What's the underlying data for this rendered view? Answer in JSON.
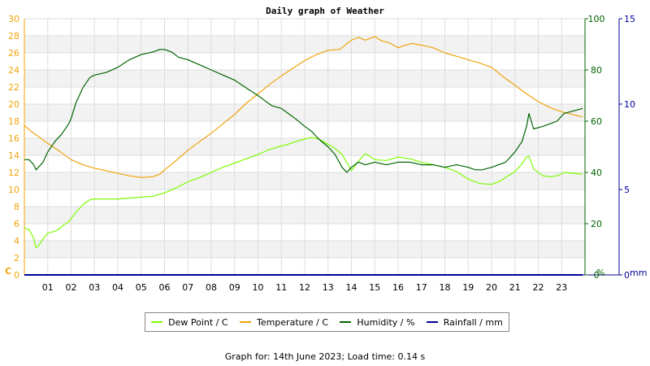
{
  "chart_data": {
    "type": "line",
    "title": "Daily graph of Weather",
    "x_ticks": [
      "01",
      "02",
      "03",
      "04",
      "05",
      "06",
      "07",
      "08",
      "09",
      "10",
      "11",
      "12",
      "13",
      "14",
      "15",
      "16",
      "17",
      "18",
      "19",
      "20",
      "21",
      "22",
      "23"
    ],
    "xlim": [
      0,
      24
    ],
    "y_left": {
      "label": "C",
      "ticks": [
        0,
        2,
        4,
        6,
        8,
        10,
        12,
        14,
        16,
        18,
        20,
        22,
        24,
        26,
        28,
        30
      ],
      "ylim": [
        0,
        30
      ],
      "color": "#f0a30a"
    },
    "y_right1": {
      "label": "%",
      "ticks": [
        0,
        20,
        40,
        60,
        80,
        100
      ],
      "ylim": [
        0,
        100
      ],
      "color": "#006400"
    },
    "y_right2": {
      "label": "mm",
      "ticks": [
        0,
        5,
        10,
        15
      ],
      "ylim": [
        0,
        15
      ],
      "color": "#000099"
    },
    "series": [
      {
        "name": "Dew Point / C",
        "axis": "left",
        "color": "#7cfc00",
        "x": [
          0,
          0.2,
          0.4,
          0.5,
          0.6,
          0.8,
          1.0,
          1.3,
          1.5,
          1.7,
          1.9,
          2.0,
          2.2,
          2.5,
          2.8,
          3.0,
          3.5,
          4.0,
          4.5,
          5.0,
          5.5,
          6.0,
          6.5,
          7.0,
          7.5,
          8.0,
          8.5,
          9.0,
          9.5,
          10.0,
          10.5,
          11.0,
          11.3,
          11.6,
          12.0,
          12.3,
          12.6,
          13.0,
          13.3,
          13.6,
          13.8,
          14.0,
          14.3,
          14.6,
          15.0,
          15.5,
          16.0,
          16.5,
          17.0,
          17.5,
          18.0,
          18.5,
          19.0,
          19.5,
          20.0,
          20.3,
          20.6,
          21.0,
          21.3,
          21.5,
          21.6,
          21.8,
          22.2,
          22.5,
          22.8,
          23.1,
          23.5,
          23.9
        ],
        "y": [
          5.5,
          5.3,
          4.3,
          3.2,
          3.4,
          4.2,
          4.9,
          5.1,
          5.4,
          5.9,
          6.2,
          6.6,
          7.3,
          8.2,
          8.8,
          8.9,
          8.9,
          8.9,
          9.0,
          9.1,
          9.2,
          9.6,
          10.2,
          10.9,
          11.4,
          12.0,
          12.6,
          13.1,
          13.6,
          14.1,
          14.7,
          15.1,
          15.3,
          15.6,
          15.9,
          16.1,
          15.9,
          15.3,
          14.8,
          14.1,
          13.2,
          12.2,
          13.3,
          14.2,
          13.5,
          13.4,
          13.8,
          13.6,
          13.2,
          12.9,
          12.6,
          12.1,
          11.2,
          10.7,
          10.6,
          10.9,
          11.4,
          12.1,
          13.0,
          13.8,
          13.9,
          12.4,
          11.6,
          11.5,
          11.6,
          12.0,
          11.9,
          11.8
        ]
      },
      {
        "name": "Temperature / C",
        "axis": "left",
        "color": "#f0a30a",
        "x": [
          0,
          0.3,
          0.6,
          1.0,
          1.5,
          2.0,
          2.5,
          3.0,
          3.5,
          4.0,
          4.5,
          5.0,
          5.5,
          5.8,
          6.0,
          6.5,
          7.0,
          7.5,
          8.0,
          8.5,
          9.0,
          9.5,
          10.0,
          10.5,
          11.0,
          11.5,
          12.0,
          12.5,
          13.0,
          13.5,
          14.0,
          14.3,
          14.6,
          15.0,
          15.3,
          15.6,
          16.0,
          16.3,
          16.6,
          17.0,
          17.5,
          18.0,
          18.5,
          19.0,
          19.5,
          20.0,
          20.5,
          21.0,
          21.5,
          22.0,
          22.5,
          23.0,
          23.9
        ],
        "y": [
          17.5,
          16.8,
          16.2,
          15.4,
          14.5,
          13.5,
          12.9,
          12.5,
          12.2,
          11.9,
          11.6,
          11.4,
          11.5,
          11.8,
          12.3,
          13.4,
          14.6,
          15.6,
          16.6,
          17.7,
          18.8,
          20.1,
          21.2,
          22.3,
          23.3,
          24.2,
          25.1,
          25.8,
          26.3,
          26.4,
          27.5,
          27.8,
          27.5,
          27.9,
          27.4,
          27.2,
          26.6,
          26.9,
          27.1,
          26.9,
          26.6,
          26.0,
          25.6,
          25.2,
          24.8,
          24.3,
          23.2,
          22.2,
          21.2,
          20.3,
          19.6,
          19.1,
          18.5
        ]
      },
      {
        "name": "Humidity / %",
        "axis": "right1",
        "color": "#006400",
        "x": [
          0,
          0.2,
          0.4,
          0.5,
          0.6,
          0.8,
          1.0,
          1.3,
          1.6,
          1.9,
          2.0,
          2.2,
          2.5,
          2.8,
          3.0,
          3.5,
          4.0,
          4.5,
          5.0,
          5.5,
          5.8,
          6.0,
          6.3,
          6.6,
          7.0,
          7.5,
          8.0,
          8.5,
          9.0,
          9.5,
          10.0,
          10.3,
          10.6,
          11.0,
          11.3,
          11.6,
          12.0,
          12.3,
          12.6,
          13.0,
          13.3,
          13.6,
          13.8,
          14.0,
          14.3,
          14.6,
          15.0,
          15.5,
          16.0,
          16.5,
          17.0,
          17.5,
          18.0,
          18.5,
          19.0,
          19.3,
          19.6,
          20.0,
          20.3,
          20.6,
          21.0,
          21.3,
          21.5,
          21.6,
          21.8,
          22.2,
          22.5,
          22.8,
          23.1,
          23.5,
          23.9
        ],
        "y": [
          45,
          45,
          43,
          41,
          42,
          44,
          48,
          52,
          55,
          59,
          61,
          67,
          73,
          77,
          78,
          79,
          81,
          84,
          86,
          87,
          88,
          88,
          87,
          85,
          84,
          82,
          80,
          78,
          76,
          73,
          70,
          68,
          66,
          65,
          63,
          61,
          58,
          56,
          53,
          50,
          47,
          42,
          40,
          42,
          44,
          43,
          44,
          43,
          44,
          44,
          43,
          43,
          42,
          43,
          42,
          41,
          41,
          42,
          43,
          44,
          48,
          52,
          58,
          63,
          57,
          58,
          59,
          60,
          63,
          64,
          65
        ]
      },
      {
        "name": "Rainfall / mm",
        "axis": "right2",
        "color": "#000099",
        "x": [
          0,
          23.9
        ],
        "y": [
          0,
          0
        ]
      }
    ],
    "grid": true,
    "legend_position": "bottom"
  },
  "footer": {
    "text": "Graph for: 14th June 2023; Load time: 0.14 s"
  }
}
